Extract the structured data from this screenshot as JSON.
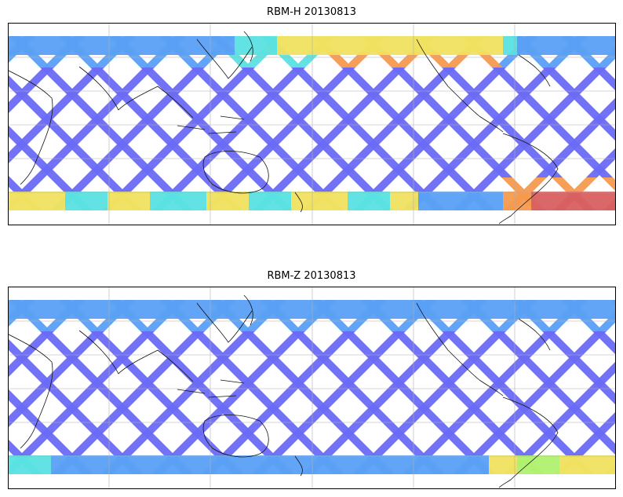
{
  "panels": [
    {
      "title": "RBM-H 20130813",
      "colors": {
        "low": "#6a6af5",
        "mid_low": "#5aa0f5",
        "mid": "#5ae0e0",
        "mid_high": "#b0f070",
        "warm": "#f0e060",
        "hot": "#f59a50",
        "max": "#d86060"
      }
    },
    {
      "title": "RBM-Z 20130813",
      "colors": {
        "low": "#6a6af5",
        "mid_low": "#5aa0f5",
        "mid": "#5ae0e0",
        "mid_high": "#b0f070",
        "warm": "#f0e060",
        "hot": "#f59a50",
        "max": "#d86060"
      }
    }
  ]
}
